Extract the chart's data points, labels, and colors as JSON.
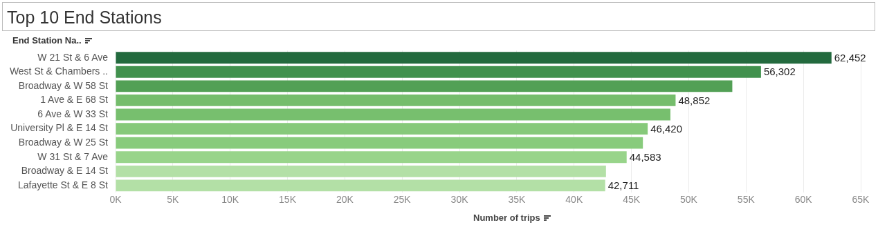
{
  "chart_data": {
    "type": "bar",
    "orientation": "horizontal",
    "title": "Top 10 End Stations",
    "ylabel": "End Station Na..",
    "xlabel": "Number of trips",
    "categories": [
      "W 21 St & 6 Ave",
      "West St & Chambers ..",
      "Broadway & W 58 St",
      "1 Ave & E 68 St",
      "6 Ave & W 33 St",
      "University Pl & E 14 St",
      "Broadway & W 25 St",
      "W 31 St & 7 Ave",
      "Broadway & E 14 St",
      "Lafayette St & E 8 St"
    ],
    "values": [
      62452,
      56302,
      53800,
      48852,
      48400,
      46420,
      46000,
      44583,
      42780,
      42711
    ],
    "value_labels": [
      "62,452",
      "56,302",
      null,
      "48,852",
      null,
      "46,420",
      null,
      "44,583",
      null,
      "42,711"
    ],
    "colors": [
      "#236a3e",
      "#41914e",
      "#52a055",
      "#75bd6c",
      "#77bf6e",
      "#86c97a",
      "#88cb7c",
      "#98d48a",
      "#b3e0a6",
      "#b3e0a6"
    ],
    "xlim": [
      0,
      65000
    ],
    "xticks": [
      {
        "value": 0,
        "label": "0K"
      },
      {
        "value": 5000,
        "label": "5K"
      },
      {
        "value": 10000,
        "label": "10K"
      },
      {
        "value": 15000,
        "label": "15K"
      },
      {
        "value": 20000,
        "label": "20K"
      },
      {
        "value": 25000,
        "label": "25K"
      },
      {
        "value": 30000,
        "label": "30K"
      },
      {
        "value": 35000,
        "label": "35K"
      },
      {
        "value": 40000,
        "label": "40K"
      },
      {
        "value": 45000,
        "label": "45K"
      },
      {
        "value": 50000,
        "label": "50K"
      },
      {
        "value": 55000,
        "label": "55K"
      },
      {
        "value": 60000,
        "label": "60K"
      },
      {
        "value": 65000,
        "label": "65K"
      }
    ],
    "grid": "x",
    "legend": false
  }
}
